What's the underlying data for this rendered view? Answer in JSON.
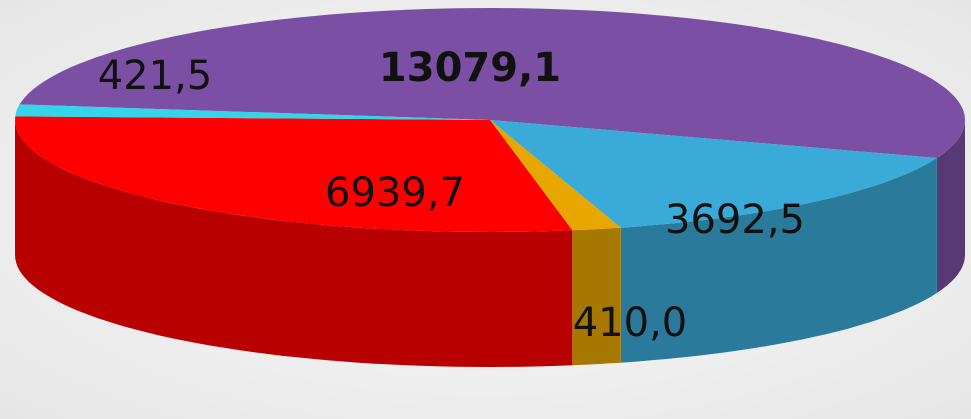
{
  "chart_data": {
    "type": "pie",
    "values": [
      13079.1,
      3692.5,
      410.0,
      6939.7,
      421.5
    ],
    "value_labels": [
      "13079,1",
      "3692,5",
      "410,0",
      "6939,7",
      "421,5"
    ],
    "colors": [
      "#7b4fa3",
      "#3aaad8",
      "#e8a600",
      "#ff0000",
      "#34d4ea"
    ]
  }
}
